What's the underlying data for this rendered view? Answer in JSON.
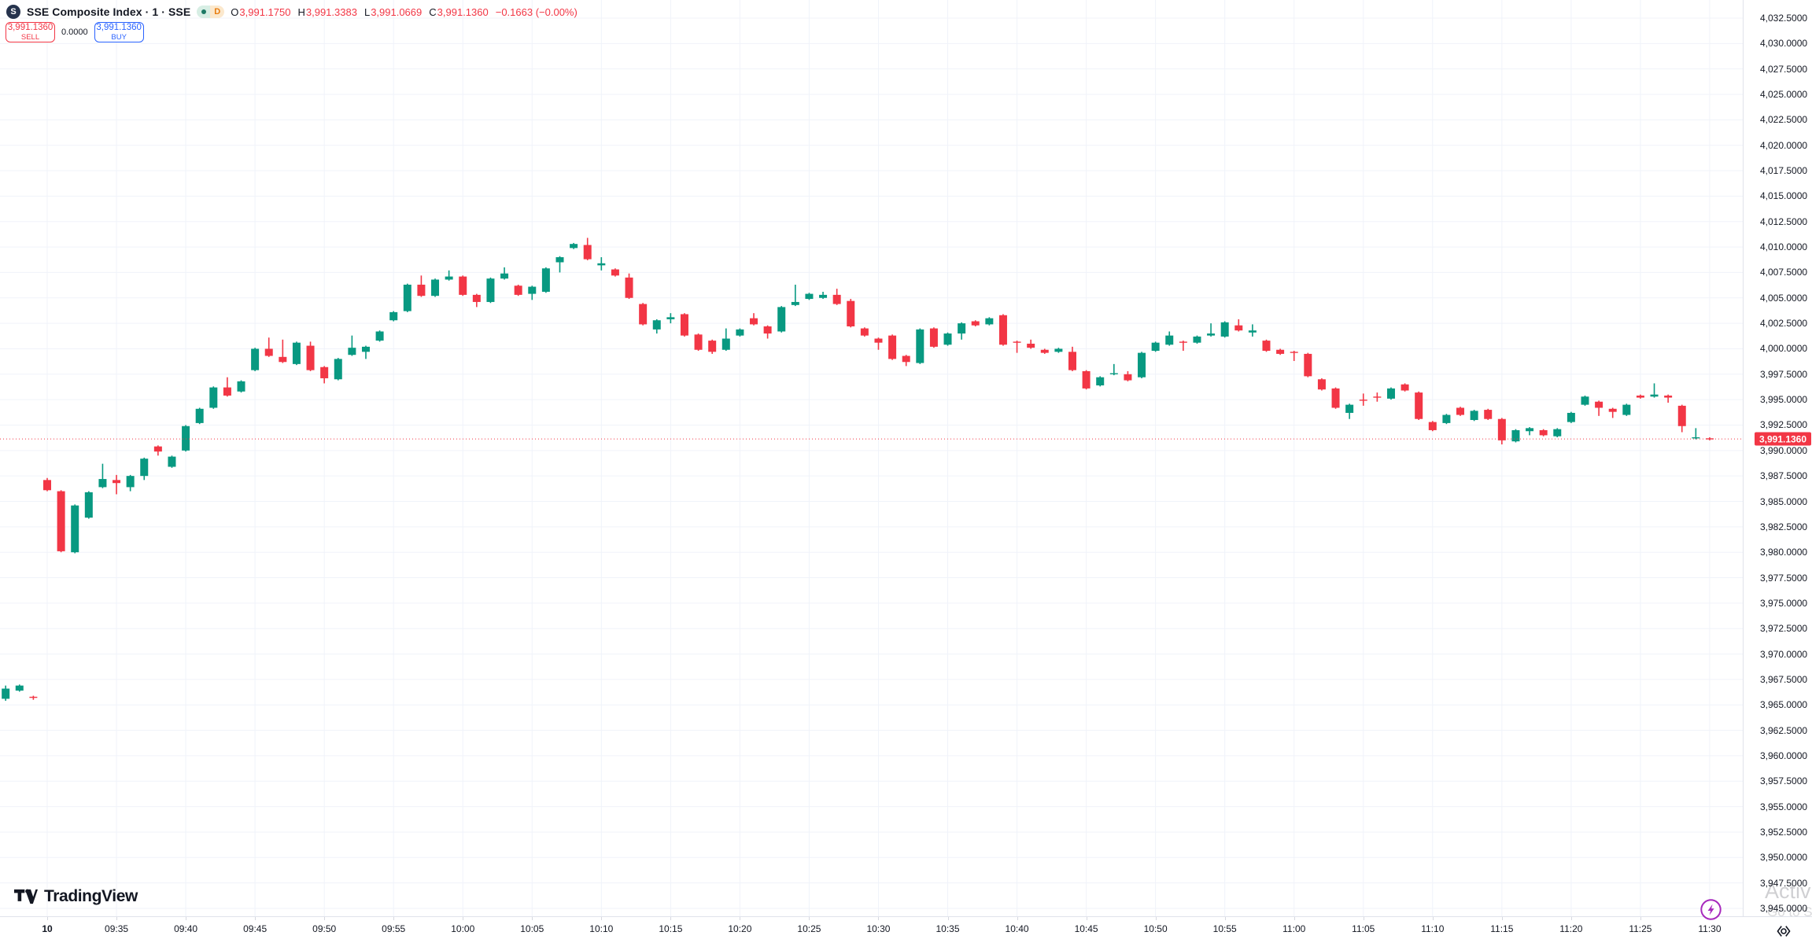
{
  "header": {
    "exchange_logo_letter": "S",
    "symbol_title": "SSE Composite Index · 1 · SSE",
    "interval_badge": "D",
    "ohlc": {
      "o_label": "O",
      "o": "3,991.1750",
      "h_label": "H",
      "h": "3,991.3383",
      "l_label": "L",
      "l": "3,991.0669",
      "c_label": "C",
      "c": "3,991.1360",
      "change": "−0.1663 (−0.00%)"
    }
  },
  "trade_widget": {
    "sell_price": "3,991.1360",
    "sell_label": "SELL",
    "spread": "0.0000",
    "buy_price": "3,991.1360",
    "buy_label": "BUY"
  },
  "price_axis": {
    "ticks": [
      4032.5,
      4030,
      4027.5,
      4025,
      4022.5,
      4020,
      4017.5,
      4015,
      4012.5,
      4010,
      4007.5,
      4005,
      4002.5,
      4000,
      3997.5,
      3995,
      3992.5,
      3990,
      3987.5,
      3985,
      3982.5,
      3980,
      3977.5,
      3975,
      3972.5,
      3970,
      3967.5,
      3965,
      3962.5,
      3960,
      3957.5,
      3955,
      3952.5,
      3950,
      3947.5,
      3945
    ],
    "current_price_tag": "3,991.1360"
  },
  "time_axis": {
    "labels": [
      {
        "text": "10",
        "time": "09:30",
        "bold": true
      },
      {
        "text": "09:35",
        "time": "09:35"
      },
      {
        "text": "09:40",
        "time": "09:40"
      },
      {
        "text": "09:45",
        "time": "09:45"
      },
      {
        "text": "09:50",
        "time": "09:50"
      },
      {
        "text": "09:55",
        "time": "09:55"
      },
      {
        "text": "10:00",
        "time": "10:00"
      },
      {
        "text": "10:05",
        "time": "10:05"
      },
      {
        "text": "10:10",
        "time": "10:10"
      },
      {
        "text": "10:15",
        "time": "10:15"
      },
      {
        "text": "10:20",
        "time": "10:20"
      },
      {
        "text": "10:25",
        "time": "10:25"
      },
      {
        "text": "10:30",
        "time": "10:30"
      },
      {
        "text": "10:35",
        "time": "10:35"
      },
      {
        "text": "10:40",
        "time": "10:40"
      },
      {
        "text": "10:45",
        "time": "10:45"
      },
      {
        "text": "10:50",
        "time": "10:50"
      },
      {
        "text": "10:55",
        "time": "10:55"
      },
      {
        "text": "11:00",
        "time": "11:00"
      },
      {
        "text": "11:05",
        "time": "11:05"
      },
      {
        "text": "11:10",
        "time": "11:10"
      },
      {
        "text": "11:15",
        "time": "11:15"
      },
      {
        "text": "11:20",
        "time": "11:20"
      },
      {
        "text": "11:25",
        "time": "11:25"
      },
      {
        "text": "11:30",
        "time": "11:30"
      }
    ]
  },
  "footer": {
    "logo_text": "TradingView"
  },
  "watermark": {
    "line1": "Activ",
    "line2": "Go to S"
  },
  "chart_data": {
    "type": "candlestick",
    "title": "SSE Composite Index, 1 minute, SSE",
    "up_color": "#089981",
    "down_color": "#F23645",
    "grid_color": "#F0F3FA",
    "current_price": 3991.136,
    "current_price_color": "#F23645",
    "y_axis": {
      "min": 3945,
      "max": 4032.5,
      "tick_step": 2.5
    },
    "x_axis": {
      "start": "09:27",
      "end": "11:30",
      "interval_minutes": 1
    },
    "candles": [
      [
        "09:27",
        3965.6,
        3966.9,
        3965.4,
        3966.6
      ],
      [
        "09:28",
        3966.4,
        3967.0,
        3966.3,
        3966.9
      ],
      [
        "09:29",
        3965.8,
        3965.9,
        3965.5,
        3965.7
      ],
      [
        "09:30",
        3987.1,
        3987.3,
        3986.0,
        3986.1
      ],
      [
        "09:31",
        3986.0,
        3986.1,
        3980.0,
        3980.1
      ],
      [
        "09:32",
        3980.0,
        3984.7,
        3979.9,
        3984.6
      ],
      [
        "09:33",
        3983.4,
        3986.0,
        3983.3,
        3985.9
      ],
      [
        "09:34",
        3986.4,
        3988.7,
        3986.3,
        3987.2
      ],
      [
        "09:35",
        3987.1,
        3987.6,
        3985.7,
        3986.8
      ],
      [
        "09:36",
        3986.4,
        3987.6,
        3986.0,
        3987.5
      ],
      [
        "09:37",
        3987.5,
        3989.3,
        3987.1,
        3989.2
      ],
      [
        "09:38",
        3990.4,
        3990.5,
        3989.5,
        3989.9
      ],
      [
        "09:39",
        3988.4,
        3989.5,
        3988.3,
        3989.4
      ],
      [
        "09:40",
        3990.0,
        3992.5,
        3989.9,
        3992.4
      ],
      [
        "09:41",
        3992.7,
        3994.2,
        3992.6,
        3994.1
      ],
      [
        "09:42",
        3994.2,
        3996.3,
        3994.1,
        3996.2
      ],
      [
        "09:43",
        3996.2,
        3997.2,
        3995.3,
        3995.4
      ],
      [
        "09:44",
        3995.8,
        3996.9,
        3995.7,
        3996.8
      ],
      [
        "09:45",
        3997.9,
        4000.1,
        3997.8,
        4000.0
      ],
      [
        "09:46",
        4000.0,
        4001.1,
        3999.2,
        3999.3
      ],
      [
        "09:47",
        3999.2,
        4000.9,
        3998.6,
        3998.7
      ],
      [
        "09:48",
        3998.5,
        4000.7,
        3998.4,
        4000.6
      ],
      [
        "09:49",
        4000.3,
        4000.7,
        3997.8,
        3997.9
      ],
      [
        "09:50",
        3998.2,
        3998.3,
        3996.6,
        3997.1
      ],
      [
        "09:51",
        3997.0,
        3999.1,
        3996.9,
        3999.0
      ],
      [
        "09:52",
        3999.4,
        4001.3,
        3999.3,
        4000.1
      ],
      [
        "09:53",
        3999.7,
        4000.3,
        3999.0,
        4000.2
      ],
      [
        "09:54",
        4000.8,
        4001.8,
        4000.7,
        4001.7
      ],
      [
        "09:55",
        4002.8,
        4003.7,
        4002.7,
        4003.6
      ],
      [
        "09:56",
        4003.7,
        4006.4,
        4003.6,
        4006.3
      ],
      [
        "09:57",
        4006.3,
        4007.2,
        4005.1,
        4005.2
      ],
      [
        "09:58",
        4005.2,
        4006.9,
        4005.1,
        4006.8
      ],
      [
        "09:59",
        4006.8,
        4007.7,
        4006.7,
        4007.1
      ],
      [
        "10:00",
        4007.1,
        4007.2,
        4005.2,
        4005.3
      ],
      [
        "10:01",
        4005.3,
        4005.4,
        4004.1,
        4004.6
      ],
      [
        "10:02",
        4004.6,
        4007.0,
        4004.5,
        4006.9
      ],
      [
        "10:03",
        4006.9,
        4008.0,
        4006.8,
        4007.4
      ],
      [
        "10:04",
        4006.2,
        4006.3,
        4005.2,
        4005.3
      ],
      [
        "10:05",
        4005.4,
        4006.2,
        4004.8,
        4006.1
      ],
      [
        "10:06",
        4005.6,
        4008.0,
        4005.5,
        4007.9
      ],
      [
        "10:07",
        4008.5,
        4009.1,
        4007.5,
        4009.0
      ],
      [
        "10:08",
        4009.9,
        4010.4,
        4009.8,
        4010.3
      ],
      [
        "10:09",
        4010.2,
        4010.9,
        4008.7,
        4008.8
      ],
      [
        "10:10",
        4008.2,
        4009.0,
        4007.7,
        4008.4
      ],
      [
        "10:11",
        4007.8,
        4007.9,
        4007.1,
        4007.2
      ],
      [
        "10:12",
        4007.0,
        4007.4,
        4004.9,
        4005.0
      ],
      [
        "10:13",
        4004.4,
        4004.5,
        4002.3,
        4002.4
      ],
      [
        "10:14",
        4001.9,
        4002.9,
        4001.5,
        4002.8
      ],
      [
        "10:15",
        4002.9,
        4003.5,
        4002.5,
        4003.1
      ],
      [
        "10:16",
        4003.4,
        4003.5,
        4001.2,
        4001.3
      ],
      [
        "10:17",
        4001.4,
        4001.5,
        3999.8,
        3999.9
      ],
      [
        "10:18",
        4000.8,
        4000.9,
        3999.5,
        3999.7
      ],
      [
        "10:19",
        3999.9,
        4002.0,
        3999.8,
        4001.0
      ],
      [
        "10:20",
        4001.3,
        4002.0,
        4001.2,
        4001.9
      ],
      [
        "10:21",
        4003.0,
        4003.5,
        4002.3,
        4002.4
      ],
      [
        "10:22",
        4002.2,
        4002.3,
        4001.0,
        4001.5
      ],
      [
        "10:23",
        4001.7,
        4004.2,
        4001.6,
        4004.1
      ],
      [
        "10:24",
        4004.3,
        4006.3,
        4004.2,
        4004.6
      ],
      [
        "10:25",
        4004.9,
        4005.5,
        4004.8,
        4005.4
      ],
      [
        "10:26",
        4005.0,
        4005.6,
        4004.9,
        4005.3
      ],
      [
        "10:27",
        4005.3,
        4005.9,
        4004.3,
        4004.4
      ],
      [
        "10:28",
        4004.7,
        4004.9,
        4002.1,
        4002.2
      ],
      [
        "10:29",
        4002.0,
        4002.1,
        4001.2,
        4001.3
      ],
      [
        "10:30",
        4001.0,
        4001.1,
        3999.9,
        4000.6
      ],
      [
        "10:31",
        4001.3,
        4001.4,
        3998.9,
        3999.0
      ],
      [
        "10:32",
        3999.3,
        3999.4,
        3998.3,
        3998.7
      ],
      [
        "10:33",
        3998.6,
        4002.0,
        3998.5,
        4001.9
      ],
      [
        "10:34",
        4002.0,
        4002.1,
        4000.1,
        4000.2
      ],
      [
        "10:35",
        4000.4,
        4001.6,
        4000.3,
        4001.5
      ],
      [
        "10:36",
        4001.5,
        4002.6,
        4000.9,
        4002.5
      ],
      [
        "10:37",
        4002.7,
        4002.8,
        4002.2,
        4002.3
      ],
      [
        "10:38",
        4002.4,
        4003.1,
        4002.3,
        4003.0
      ],
      [
        "10:39",
        4003.3,
        4003.4,
        4000.3,
        4000.4
      ],
      [
        "10:40",
        4000.7,
        4000.8,
        3999.6,
        4000.6
      ],
      [
        "10:41",
        4000.5,
        4000.9,
        4000.0,
        4000.1
      ],
      [
        "10:42",
        3999.9,
        4000.0,
        3999.5,
        3999.6
      ],
      [
        "10:43",
        3999.7,
        4000.1,
        3999.6,
        4000.0
      ],
      [
        "10:44",
        3999.7,
        4000.2,
        3997.8,
        3997.9
      ],
      [
        "10:45",
        3997.8,
        3997.9,
        3996.0,
        3996.1
      ],
      [
        "10:46",
        3996.4,
        3997.3,
        3996.3,
        3997.2
      ],
      [
        "10:47",
        3997.5,
        3998.5,
        3997.4,
        3997.6
      ],
      [
        "10:48",
        3997.5,
        3997.8,
        3996.8,
        3996.9
      ],
      [
        "10:49",
        3997.2,
        3999.7,
        3997.1,
        3999.6
      ],
      [
        "10:50",
        3999.8,
        4000.7,
        3999.7,
        4000.6
      ],
      [
        "10:51",
        4000.4,
        4001.7,
        4000.3,
        4001.3
      ],
      [
        "10:52",
        4000.7,
        4000.8,
        3999.8,
        4000.6
      ],
      [
        "10:53",
        4000.6,
        4001.3,
        4000.5,
        4001.2
      ],
      [
        "10:54",
        4001.3,
        4002.5,
        4001.2,
        4001.5
      ],
      [
        "10:55",
        4001.2,
        4002.7,
        4001.1,
        4002.6
      ],
      [
        "10:56",
        4002.3,
        4002.9,
        4001.7,
        4001.8
      ],
      [
        "10:57",
        4001.6,
        4002.4,
        4001.2,
        4001.8
      ],
      [
        "10:58",
        4000.8,
        4000.9,
        3999.7,
        3999.8
      ],
      [
        "10:59",
        3999.9,
        4000.0,
        3999.4,
        3999.5
      ],
      [
        "11:00",
        3999.7,
        3999.8,
        3998.8,
        3999.6
      ],
      [
        "11:01",
        3999.5,
        3999.6,
        3997.2,
        3997.3
      ],
      [
        "11:02",
        3997.0,
        3997.1,
        3995.9,
        3996.0
      ],
      [
        "11:03",
        3996.1,
        3996.2,
        3994.1,
        3994.2
      ],
      [
        "11:04",
        3993.7,
        3994.6,
        3993.1,
        3994.5
      ],
      [
        "11:05",
        3995.0,
        3995.6,
        3994.4,
        3994.9
      ],
      [
        "11:06",
        3995.3,
        3995.7,
        3994.8,
        3995.2
      ],
      [
        "11:07",
        3995.1,
        3996.2,
        3995.0,
        3996.1
      ],
      [
        "11:08",
        3996.5,
        3996.6,
        3995.8,
        3995.9
      ],
      [
        "11:09",
        3995.7,
        3995.8,
        3993.0,
        3993.1
      ],
      [
        "11:10",
        3992.8,
        3992.9,
        3991.9,
        3992.0
      ],
      [
        "11:11",
        3992.7,
        3993.6,
        3992.6,
        3993.5
      ],
      [
        "11:12",
        3994.2,
        3994.3,
        3993.4,
        3993.5
      ],
      [
        "11:13",
        3993.0,
        3994.0,
        3992.9,
        3993.9
      ],
      [
        "11:14",
        3994.0,
        3994.1,
        3993.0,
        3993.1
      ],
      [
        "11:15",
        3993.1,
        3993.2,
        3990.6,
        3991.0
      ],
      [
        "11:16",
        3990.9,
        3992.1,
        3990.8,
        3992.0
      ],
      [
        "11:17",
        3991.9,
        3992.3,
        3991.5,
        3992.2
      ],
      [
        "11:18",
        3992.0,
        3992.1,
        3991.4,
        3991.5
      ],
      [
        "11:19",
        3991.4,
        3992.2,
        3991.3,
        3992.1
      ],
      [
        "11:20",
        3992.8,
        3993.8,
        3992.7,
        3993.7
      ],
      [
        "11:21",
        3994.5,
        3995.4,
        3994.4,
        3995.3
      ],
      [
        "11:22",
        3994.8,
        3994.9,
        3993.4,
        3994.2
      ],
      [
        "11:23",
        3994.1,
        3994.2,
        3993.2,
        3993.8
      ],
      [
        "11:24",
        3993.5,
        3994.6,
        3993.4,
        3994.5
      ],
      [
        "11:25",
        3995.4,
        3995.5,
        3995.1,
        3995.2
      ],
      [
        "11:26",
        3995.3,
        3996.6,
        3995.2,
        3995.5
      ],
      [
        "11:27",
        3995.4,
        3995.5,
        3994.7,
        3995.2
      ],
      [
        "11:28",
        3994.4,
        3994.5,
        3991.8,
        3992.4
      ],
      [
        "11:29",
        3991.2,
        3992.2,
        3991.1,
        3991.3
      ],
      [
        "11:30",
        3991.2,
        3991.3,
        3991.0,
        3991.14
      ]
    ]
  }
}
